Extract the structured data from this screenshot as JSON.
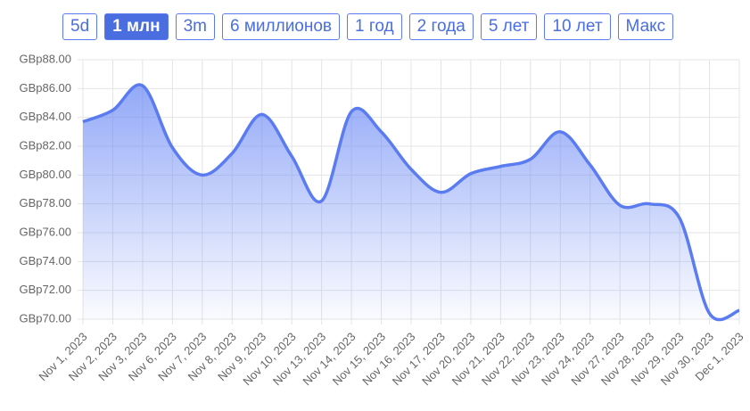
{
  "buttons": [
    "5d",
    "1 млн",
    "3m",
    "6 миллионов",
    "1 год",
    "2 года",
    "5 лет",
    "10 лет",
    "Макс"
  ],
  "chart_data": {
    "type": "area",
    "categories": [
      "Nov 1, 2023",
      "Nov 2, 2023",
      "Nov 3, 2023",
      "Nov 6, 2023",
      "Nov 7, 2023",
      "Nov 8, 2023",
      "Nov 9, 2023",
      "Nov 10, 2023",
      "Nov 13, 2023",
      "Nov 14, 2023",
      "Nov 15, 2023",
      "Nov 16, 2023",
      "Nov 17, 2023",
      "Nov 20, 2023",
      "Nov 21, 2023",
      "Nov 22, 2023",
      "Nov 23, 2023",
      "Nov 24, 2023",
      "Nov 27, 2023",
      "Nov 28, 2023",
      "Nov 29, 2023",
      "Nov 30, 2023",
      "Dec 1, 2023"
    ],
    "values": [
      83.7,
      84.5,
      86.2,
      81.9,
      80.0,
      81.5,
      84.2,
      81.3,
      78.2,
      84.4,
      83.0,
      80.4,
      78.8,
      80.1,
      80.6,
      81.1,
      83.0,
      80.7,
      77.9,
      78.0,
      77.0,
      70.4,
      70.6
    ],
    "color": "#5b7cf0",
    "ylim": [
      70,
      88
    ],
    "yticks": [
      {
        "value": 70,
        "label": "GBp70.00"
      },
      {
        "value": 72,
        "label": "GBp72.00"
      },
      {
        "value": 74,
        "label": "GBp74.00"
      },
      {
        "value": 76,
        "label": "GBp76.00"
      },
      {
        "value": 78,
        "label": "GBp78.00"
      },
      {
        "value": 80,
        "label": "GBp80.00"
      },
      {
        "value": 82,
        "label": "GBp82.00"
      },
      {
        "value": 84,
        "label": "GBp84.00"
      },
      {
        "value": 86,
        "label": "GBp86.00"
      },
      {
        "value": 88,
        "label": "GBp88.00"
      }
    ],
    "grid": true
  }
}
